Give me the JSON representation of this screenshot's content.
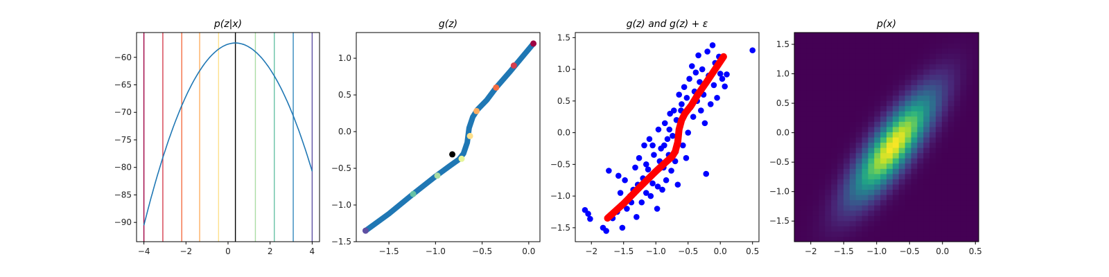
{
  "chart_data": [
    {
      "type": "line",
      "title": "p(z|x)",
      "xlim": [
        -4.35,
        4.35
      ],
      "ylim": [
        -93.5,
        -55.5
      ],
      "xticks": [
        -4,
        -2,
        0,
        2,
        4
      ],
      "yticks": [
        -90,
        -85,
        -80,
        -75,
        -70,
        -65,
        -60
      ],
      "curve": {
        "color": "#1f77b4",
        "peak_x": 0.35,
        "peak_y": -57.4,
        "curvature": 1.75,
        "x_range": [
          -4,
          4
        ]
      },
      "vlines": [
        {
          "x": -4.0,
          "color": "#9e0142"
        },
        {
          "x": -3.1,
          "color": "#d53e4f"
        },
        {
          "x": -2.2,
          "color": "#f46d43"
        },
        {
          "x": -1.35,
          "color": "#fdae61"
        },
        {
          "x": -0.45,
          "color": "#fee08b"
        },
        {
          "x": 0.35,
          "color": "#000000"
        },
        {
          "x": 1.3,
          "color": "#abdda4"
        },
        {
          "x": 2.2,
          "color": "#66c2a5"
        },
        {
          "x": 3.1,
          "color": "#3288bd"
        },
        {
          "x": 4.0,
          "color": "#5e4fa2"
        }
      ]
    },
    {
      "type": "scatter",
      "title": "g(z)",
      "xlim": [
        -1.85,
        0.12
      ],
      "ylim": [
        -1.5,
        1.35
      ],
      "xticks": [
        -1.5,
        -1.0,
        -0.5,
        0.0
      ],
      "yticks": [
        -1.5,
        -1.0,
        -0.5,
        0.0,
        0.5,
        1.0
      ],
      "curve_color": "#1f77b4",
      "curve": [
        [
          -1.75,
          -1.35
        ],
        [
          -1.5,
          -1.12
        ],
        [
          -1.25,
          -0.86
        ],
        [
          -1.0,
          -0.61
        ],
        [
          -0.85,
          -0.47
        ],
        [
          -0.75,
          -0.38
        ],
        [
          -0.7,
          -0.3
        ],
        [
          -0.66,
          -0.15
        ],
        [
          -0.64,
          0.05
        ],
        [
          -0.6,
          0.2
        ],
        [
          -0.55,
          0.3
        ],
        [
          -0.45,
          0.43
        ],
        [
          -0.35,
          0.6
        ],
        [
          -0.2,
          0.82
        ],
        [
          0.05,
          1.2
        ]
      ],
      "highlights": [
        {
          "x": -1.75,
          "y": -1.35,
          "color": "#5e4fa2"
        },
        {
          "x": -1.24,
          "y": -0.85,
          "color": "#66c2a5"
        },
        {
          "x": -0.98,
          "y": -0.6,
          "color": "#abdda4"
        },
        {
          "x": -0.82,
          "y": -0.31,
          "color": "#000000"
        },
        {
          "x": -0.72,
          "y": -0.37,
          "color": "#e6f598"
        },
        {
          "x": -0.63,
          "y": -0.06,
          "color": "#fee08b"
        },
        {
          "x": -0.56,
          "y": 0.28,
          "color": "#fdae61"
        },
        {
          "x": -0.35,
          "y": 0.6,
          "color": "#f46d43"
        },
        {
          "x": -0.16,
          "y": 0.9,
          "color": "#d53e4f"
        },
        {
          "x": 0.05,
          "y": 1.2,
          "color": "#9e0142"
        }
      ]
    },
    {
      "type": "scatter",
      "title": "g(z) and g(z) + ε",
      "xlim": [
        -2.25,
        0.6
      ],
      "ylim": [
        -1.72,
        1.58
      ],
      "xticks": [
        -2.0,
        -1.5,
        -1.0,
        -0.5,
        0.0,
        0.5
      ],
      "yticks": [
        -1.5,
        -1.0,
        -0.5,
        0.0,
        0.5,
        1.0,
        1.5
      ],
      "noisy_color": "#0000ff",
      "curve_color": "#ff0000",
      "noisy_points": [
        [
          -2.1,
          -1.22
        ],
        [
          -2.05,
          -1.28
        ],
        [
          -2.02,
          -1.36
        ],
        [
          -1.82,
          -1.5
        ],
        [
          -1.77,
          -1.55
        ],
        [
          -1.73,
          -0.6
        ],
        [
          -1.67,
          -1.35
        ],
        [
          -1.6,
          -1.25
        ],
        [
          -1.58,
          -0.68
        ],
        [
          -1.52,
          -1.5
        ],
        [
          -1.48,
          -0.75
        ],
        [
          -1.45,
          -1.2
        ],
        [
          -1.4,
          -1.0
        ],
        [
          -1.35,
          -0.9
        ],
        [
          -1.32,
          -0.55
        ],
        [
          -1.3,
          -1.33
        ],
        [
          -1.26,
          -0.4
        ],
        [
          -1.22,
          -1.1
        ],
        [
          -1.2,
          -0.72
        ],
        [
          -1.18,
          -0.2
        ],
        [
          -1.15,
          -0.95
        ],
        [
          -1.12,
          -0.58
        ],
        [
          -1.1,
          -0.1
        ],
        [
          -1.08,
          -1.0
        ],
        [
          -1.05,
          -0.8
        ],
        [
          -1.03,
          -0.35
        ],
        [
          -1.0,
          -0.62
        ],
        [
          -0.98,
          -1.2
        ],
        [
          -0.96,
          0.05
        ],
        [
          -0.94,
          -0.45
        ],
        [
          -0.92,
          -0.25
        ],
        [
          -0.9,
          -0.9
        ],
        [
          -0.88,
          -0.55
        ],
        [
          -0.86,
          0.15
        ],
        [
          -0.84,
          -0.75
        ],
        [
          -0.82,
          -0.1
        ],
        [
          -0.8,
          -0.35
        ],
        [
          -0.78,
          0.3
        ],
        [
          -0.76,
          -0.6
        ],
        [
          -0.74,
          -0.05
        ],
        [
          -0.72,
          0.35
        ],
        [
          -0.7,
          -0.45
        ],
        [
          -0.68,
          0.2
        ],
        [
          -0.66,
          -0.82
        ],
        [
          -0.64,
          0.6
        ],
        [
          -0.62,
          0.1
        ],
        [
          -0.6,
          0.45
        ],
        [
          -0.58,
          -0.2
        ],
        [
          -0.56,
          0.72
        ],
        [
          -0.54,
          0.3
        ],
        [
          -0.52,
          0.55
        ],
        [
          -0.5,
          0.0
        ],
        [
          -0.48,
          0.85
        ],
        [
          -0.46,
          0.4
        ],
        [
          -0.44,
          1.05
        ],
        [
          -0.42,
          0.25
        ],
        [
          -0.4,
          0.65
        ],
        [
          -0.38,
          0.95
        ],
        [
          -0.36,
          0.5
        ],
        [
          -0.34,
          1.22
        ],
        [
          -0.32,
          0.8
        ],
        [
          -0.3,
          0.35
        ],
        [
          -0.28,
          1.0
        ],
        [
          -0.26,
          0.6
        ],
        [
          -0.24,
          0.15
        ],
        [
          -0.22,
          -0.65
        ],
        [
          -0.2,
          1.28
        ],
        [
          -0.18,
          0.9
        ],
        [
          -0.15,
          0.45
        ],
        [
          -0.12,
          1.38
        ],
        [
          -0.1,
          0.75
        ],
        [
          -0.08,
          1.1
        ],
        [
          -0.05,
          0.55
        ],
        [
          -0.02,
          1.2
        ],
        [
          0.0,
          0.93
        ],
        [
          0.03,
          0.85
        ],
        [
          0.07,
          0.73
        ],
        [
          0.1,
          0.92
        ],
        [
          0.5,
          1.3
        ],
        [
          -1.55,
          -0.95
        ],
        [
          -1.38,
          -1.1
        ],
        [
          -1.28,
          -0.82
        ],
        [
          -1.15,
          -0.5
        ],
        [
          -1.05,
          -0.2
        ],
        [
          -0.97,
          -0.85
        ],
        [
          -0.87,
          -0.2
        ],
        [
          -0.79,
          0.05
        ],
        [
          -0.69,
          -0.3
        ],
        [
          -0.61,
          0.35
        ],
        [
          -0.53,
          -0.4
        ]
      ],
      "curve": [
        [
          -1.75,
          -1.35
        ],
        [
          -1.5,
          -1.12
        ],
        [
          -1.25,
          -0.86
        ],
        [
          -1.0,
          -0.61
        ],
        [
          -0.85,
          -0.47
        ],
        [
          -0.75,
          -0.38
        ],
        [
          -0.7,
          -0.3
        ],
        [
          -0.66,
          -0.15
        ],
        [
          -0.64,
          0.05
        ],
        [
          -0.6,
          0.2
        ],
        [
          -0.55,
          0.3
        ],
        [
          -0.45,
          0.43
        ],
        [
          -0.35,
          0.6
        ],
        [
          -0.2,
          0.82
        ],
        [
          0.05,
          1.2
        ]
      ]
    },
    {
      "type": "heatmap",
      "title": "p(x)",
      "xlim": [
        -2.25,
        0.55
      ],
      "ylim": [
        -1.85,
        1.7
      ],
      "xticks": [
        -2.0,
        -1.5,
        -1.0,
        -0.5,
        0.0,
        0.5
      ],
      "yticks": [
        -1.5,
        -1.0,
        -0.5,
        0.0,
        0.5,
        1.0,
        1.5
      ],
      "colormap": "viridis",
      "grid": [
        30,
        40
      ],
      "density": {
        "mean": [
          -0.75,
          -0.22
        ],
        "sx": 0.42,
        "sy": 0.6,
        "rho": 0.82
      }
    }
  ]
}
